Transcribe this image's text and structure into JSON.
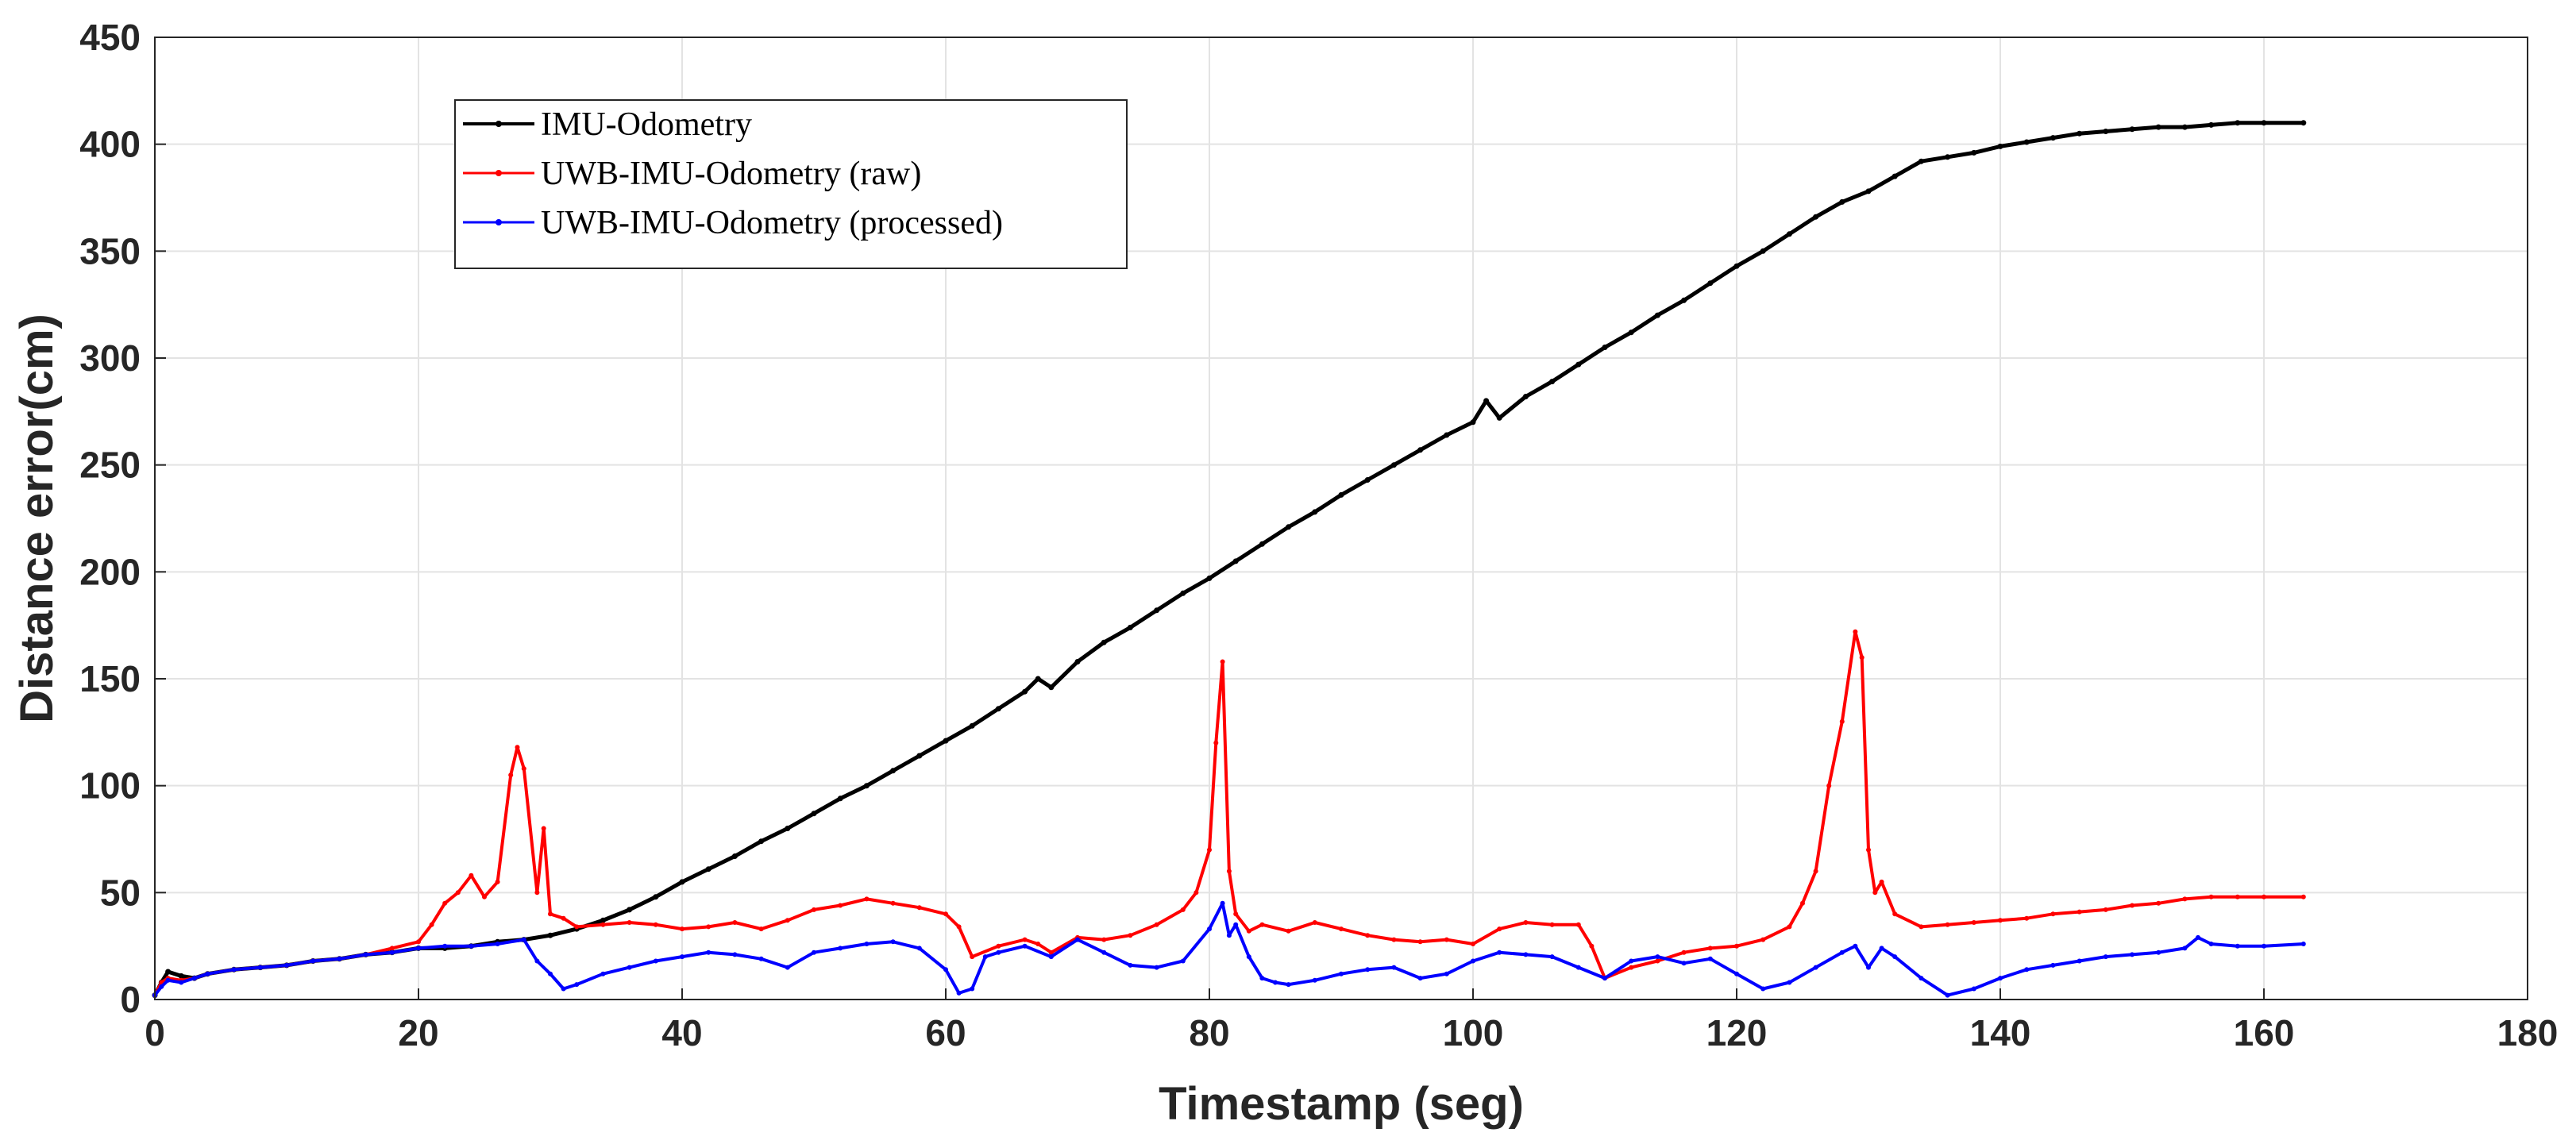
{
  "chart_data": {
    "type": "line",
    "title": "",
    "xlabel": "Timestamp (seg)",
    "ylabel": "Distance error(cm)",
    "xlim": [
      0,
      180
    ],
    "ylim": [
      0,
      450
    ],
    "xticks": [
      0,
      20,
      40,
      60,
      80,
      100,
      120,
      140,
      160,
      180
    ],
    "yticks": [
      0,
      50,
      100,
      150,
      200,
      250,
      300,
      350,
      400,
      450
    ],
    "grid": true,
    "legend_position": "top-left",
    "series": [
      {
        "name": "IMU-Odometry",
        "color": "#000000",
        "x": [
          0,
          0.5,
          1,
          2,
          3,
          4,
          6,
          8,
          10,
          12,
          14,
          16,
          18,
          20,
          22,
          24,
          26,
          28,
          30,
          32,
          34,
          36,
          38,
          40,
          42,
          44,
          46,
          48,
          50,
          52,
          54,
          56,
          58,
          60,
          62,
          64,
          66,
          67,
          68,
          70,
          72,
          74,
          76,
          78,
          80,
          82,
          84,
          86,
          88,
          90,
          92,
          94,
          96,
          98,
          100,
          101,
          102,
          104,
          106,
          108,
          110,
          112,
          114,
          116,
          118,
          120,
          122,
          124,
          126,
          128,
          130,
          132,
          134,
          136,
          138,
          140,
          142,
          144,
          146,
          148,
          150,
          152,
          154,
          156,
          158,
          160,
          163
        ],
        "values": [
          2,
          8,
          13,
          11,
          10,
          12,
          14,
          15,
          16,
          18,
          19,
          21,
          22,
          24,
          24,
          25,
          27,
          28,
          30,
          33,
          37,
          42,
          48,
          55,
          61,
          67,
          74,
          80,
          87,
          94,
          100,
          107,
          114,
          121,
          128,
          136,
          144,
          150,
          146,
          158,
          167,
          174,
          182,
          190,
          197,
          205,
          213,
          221,
          228,
          236,
          243,
          250,
          257,
          264,
          270,
          280,
          272,
          282,
          289,
          297,
          305,
          312,
          320,
          327,
          335,
          343,
          350,
          358,
          366,
          373,
          378,
          385,
          392,
          394,
          396,
          399,
          401,
          403,
          405,
          406,
          407,
          408,
          408,
          409,
          410,
          410,
          410
        ]
      },
      {
        "name": "UWB-IMU-Odometry (raw)",
        "color": "#ff0000",
        "x": [
          0,
          0.5,
          1,
          2,
          3,
          4,
          6,
          8,
          10,
          12,
          14,
          16,
          18,
          20,
          21,
          22,
          23,
          24,
          25,
          26,
          27,
          27.5,
          28,
          29,
          29.5,
          30,
          31,
          32,
          34,
          36,
          38,
          40,
          42,
          44,
          46,
          48,
          50,
          52,
          54,
          56,
          58,
          60,
          61,
          62,
          64,
          66,
          67,
          68,
          70,
          72,
          74,
          76,
          78,
          79,
          80,
          80.5,
          81,
          81.5,
          82,
          83,
          84,
          86,
          88,
          90,
          92,
          94,
          96,
          98,
          100,
          102,
          104,
          106,
          108,
          109,
          110,
          112,
          114,
          116,
          118,
          120,
          122,
          124,
          125,
          126,
          127,
          128,
          129,
          129.5,
          130,
          130.5,
          131,
          132,
          134,
          136,
          138,
          140,
          142,
          144,
          146,
          148,
          150,
          152,
          154,
          156,
          158,
          160,
          163
        ],
        "values": [
          2,
          8,
          10,
          9,
          10,
          12,
          14,
          15,
          16,
          18,
          19,
          21,
          24,
          27,
          35,
          45,
          50,
          58,
          48,
          55,
          105,
          118,
          108,
          50,
          80,
          40,
          38,
          34,
          35,
          36,
          35,
          33,
          34,
          36,
          33,
          37,
          42,
          44,
          47,
          45,
          43,
          40,
          34,
          20,
          25,
          28,
          26,
          22,
          29,
          28,
          30,
          35,
          42,
          50,
          70,
          120,
          158,
          60,
          40,
          32,
          35,
          32,
          36,
          33,
          30,
          28,
          27,
          28,
          26,
          33,
          36,
          35,
          35,
          25,
          10,
          15,
          18,
          22,
          24,
          25,
          28,
          34,
          45,
          60,
          100,
          130,
          172,
          160,
          70,
          50,
          55,
          40,
          34,
          35,
          36,
          37,
          38,
          40,
          41,
          42,
          44,
          45,
          47,
          48,
          48,
          48,
          48
        ]
      },
      {
        "name": "UWB-IMU-Odometry (processed)",
        "color": "#0000ff",
        "x": [
          0,
          0.5,
          1,
          2,
          3,
          4,
          6,
          8,
          10,
          12,
          14,
          16,
          18,
          20,
          22,
          24,
          26,
          28,
          29,
          30,
          31,
          32,
          34,
          36,
          38,
          40,
          42,
          44,
          46,
          48,
          50,
          52,
          54,
          56,
          58,
          60,
          61,
          62,
          63,
          64,
          66,
          68,
          70,
          72,
          74,
          76,
          78,
          80,
          81,
          81.5,
          82,
          83,
          84,
          85,
          86,
          88,
          90,
          92,
          94,
          96,
          98,
          100,
          102,
          104,
          106,
          108,
          110,
          112,
          114,
          116,
          118,
          120,
          122,
          124,
          126,
          128,
          129,
          130,
          131,
          132,
          134,
          136,
          138,
          140,
          142,
          144,
          146,
          148,
          150,
          152,
          154,
          155,
          156,
          158,
          160,
          163
        ],
        "values": [
          2,
          6,
          9,
          8,
          10,
          12,
          14,
          15,
          16,
          18,
          19,
          21,
          22,
          24,
          25,
          25,
          26,
          28,
          18,
          12,
          5,
          7,
          12,
          15,
          18,
          20,
          22,
          21,
          19,
          15,
          22,
          24,
          26,
          27,
          24,
          14,
          3,
          5,
          20,
          22,
          25,
          20,
          28,
          22,
          16,
          15,
          18,
          33,
          45,
          30,
          35,
          20,
          10,
          8,
          7,
          9,
          12,
          14,
          15,
          10,
          12,
          18,
          22,
          21,
          20,
          15,
          10,
          18,
          20,
          17,
          19,
          12,
          5,
          8,
          15,
          22,
          25,
          15,
          24,
          20,
          10,
          2,
          5,
          10,
          14,
          16,
          18,
          20,
          21,
          22,
          24,
          29,
          26,
          25,
          25,
          26
        ]
      }
    ]
  }
}
